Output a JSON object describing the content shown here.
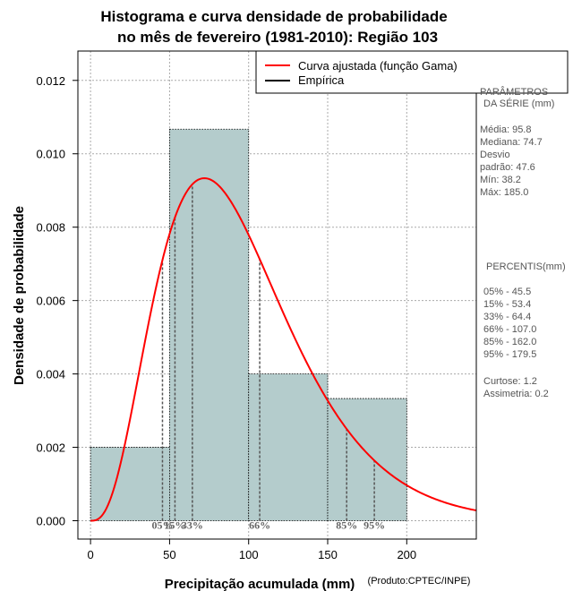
{
  "chart_data": {
    "type": "bar",
    "title_line1": "Histograma e curva densidade de probabilidade",
    "title_line2": "no mês de fevereiro (1981-2010): Região 103",
    "xlabel": "Precipitação acumulada (mm)",
    "ylabel": "Densidade de probabilidade",
    "credit": "(Produto:CPTEC/INPE)",
    "xlim": [
      -8,
      244
    ],
    "ylim": [
      -0.0005,
      0.0128
    ],
    "x_ticks": [
      {
        "value": 0,
        "label": "0"
      },
      {
        "value": 50,
        "label": "50"
      },
      {
        "value": 100,
        "label": "100"
      },
      {
        "value": 150,
        "label": "150"
      },
      {
        "value": 200,
        "label": "200"
      }
    ],
    "y_ticks": [
      {
        "value": 0.0,
        "label": "0.000"
      },
      {
        "value": 0.002,
        "label": "0.002"
      },
      {
        "value": 0.004,
        "label": "0.004"
      },
      {
        "value": 0.006,
        "label": "0.006"
      },
      {
        "value": 0.008,
        "label": "0.008"
      },
      {
        "value": 0.01,
        "label": "0.010"
      },
      {
        "value": 0.012,
        "label": "0.012"
      }
    ],
    "bins": [
      {
        "x0": 0,
        "x1": 50,
        "density": 0.002
      },
      {
        "x0": 50,
        "x1": 100,
        "density": 0.01067
      },
      {
        "x0": 100,
        "x1": 150,
        "density": 0.004
      },
      {
        "x0": 150,
        "x1": 200,
        "density": 0.00333
      }
    ],
    "gamma_fit": {
      "shape": 4.0,
      "scale": 24.0,
      "x_max": 244
    },
    "percentile_lines": [
      {
        "x": 45.5,
        "label": "05%"
      },
      {
        "x": 53.4,
        "label": "15%"
      },
      {
        "x": 64.4,
        "label": "33%"
      },
      {
        "x": 107.0,
        "label": "66%"
      },
      {
        "x": 162.0,
        "label": "85%"
      },
      {
        "x": 179.5,
        "label": "95%"
      }
    ],
    "legend": [
      {
        "label": "Curva ajustada (função Gama)",
        "color": "#ff0000"
      },
      {
        "label": "Empírica",
        "color": "#000000"
      }
    ],
    "grid": true,
    "colors": {
      "bar_fill": "#b4cccc",
      "curve": "#ff0000",
      "grid": "#aaaaaa"
    }
  },
  "stats_panel": {
    "params_title_line1": "PARÂMETROS",
    "params_title_line2": "DA SÉRIE (mm)",
    "media": "Média:  95.8",
    "mediana": "Mediana:  74.7",
    "desvio_line1": "Desvio",
    "desvio_line2": "padrão:  47.6",
    "min": "Mín:  38.2",
    "max": "Máx:  185.0",
    "percentis_title": "PERCENTIS(mm)",
    "percentis": [
      "05% -  45.5",
      "15% -  53.4",
      "33% -  64.4",
      "66% -  107.0",
      "85% -  162.0",
      "95% -  179.5"
    ],
    "curtose": "Curtose:  1.2",
    "assimetria": "Assimetria:  0.2"
  }
}
